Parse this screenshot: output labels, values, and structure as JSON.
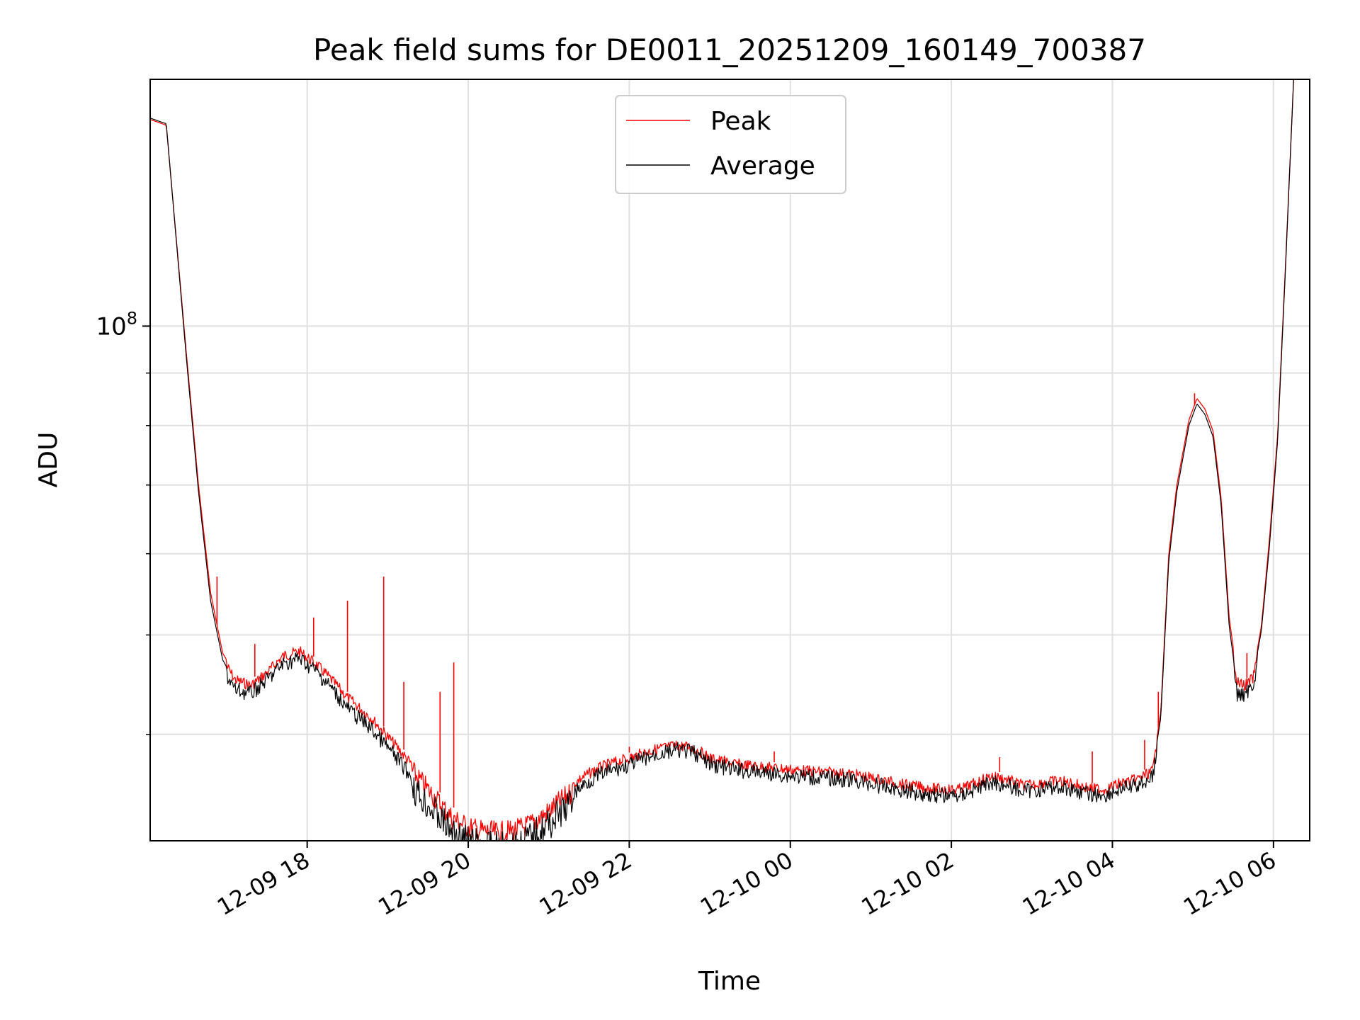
{
  "chart_data": {
    "type": "line",
    "title": "Peak field sums for DE0011_20251209_160149_700387",
    "xlabel": "Time",
    "ylabel": "ADU",
    "yscale": "log",
    "ylim": [
      31500000,
      174000000
    ],
    "xlim_hours": [
      16.05,
      30.45
    ],
    "grid": true,
    "legend_position": "top-center",
    "x_ticks": [
      {
        "hour": 18,
        "label": "12-09 18"
      },
      {
        "hour": 20,
        "label": "12-09 20"
      },
      {
        "hour": 22,
        "label": "12-09 22"
      },
      {
        "hour": 24,
        "label": "12-10 00"
      },
      {
        "hour": 26,
        "label": "12-10 02"
      },
      {
        "hour": 28,
        "label": "12-10 04"
      },
      {
        "hour": 30,
        "label": "12-10 06"
      }
    ],
    "y_major_tick": {
      "value": 100000000,
      "base": "10",
      "exp": "8"
    },
    "y_minor_ticks": [
      40000000,
      50000000,
      60000000,
      70000000,
      80000000,
      90000000,
      200000000
    ],
    "series": [
      {
        "name": "Peak",
        "color": "#ff0000",
        "points": [
          [
            16.05,
            159000000
          ],
          [
            16.25,
            157000000
          ],
          [
            16.5,
            94000000
          ],
          [
            16.65,
            70000000
          ],
          [
            16.8,
            55000000
          ],
          [
            16.95,
            48000000
          ],
          [
            17.1,
            45800000
          ],
          [
            17.3,
            45200000
          ],
          [
            17.5,
            46500000
          ],
          [
            17.7,
            48300000
          ],
          [
            17.9,
            48800000
          ],
          [
            18.1,
            47500000
          ],
          [
            18.3,
            45800000
          ],
          [
            18.5,
            44000000
          ],
          [
            18.8,
            42000000
          ],
          [
            19.1,
            39500000
          ],
          [
            19.4,
            37000000
          ],
          [
            19.6,
            35500000
          ],
          [
            19.8,
            34000000
          ],
          [
            20.0,
            33300000
          ],
          [
            20.2,
            33000000
          ],
          [
            20.4,
            32900000
          ],
          [
            20.6,
            33100000
          ],
          [
            20.8,
            33600000
          ],
          [
            21.0,
            34500000
          ],
          [
            21.2,
            35600000
          ],
          [
            21.4,
            36700000
          ],
          [
            21.6,
            37500000
          ],
          [
            21.8,
            38000000
          ],
          [
            22.0,
            38400000
          ],
          [
            22.2,
            38900000
          ],
          [
            22.4,
            39300000
          ],
          [
            22.6,
            39500000
          ],
          [
            22.8,
            39300000
          ],
          [
            23.0,
            38400000
          ],
          [
            23.3,
            37900000
          ],
          [
            23.6,
            37700000
          ],
          [
            23.9,
            37500000
          ],
          [
            24.2,
            37300000
          ],
          [
            24.5,
            37200000
          ],
          [
            24.8,
            37000000
          ],
          [
            25.1,
            36600000
          ],
          [
            25.4,
            36200000
          ],
          [
            25.7,
            35900000
          ],
          [
            25.9,
            35800000
          ],
          [
            26.1,
            35800000
          ],
          [
            26.3,
            36300000
          ],
          [
            26.5,
            36900000
          ],
          [
            26.7,
            36600000
          ],
          [
            26.9,
            36100000
          ],
          [
            27.1,
            36300000
          ],
          [
            27.3,
            36500000
          ],
          [
            27.5,
            36300000
          ],
          [
            27.7,
            35900000
          ],
          [
            27.9,
            35800000
          ],
          [
            28.1,
            36300000
          ],
          [
            28.3,
            36600000
          ],
          [
            28.5,
            37300000
          ],
          [
            28.6,
            42000000
          ],
          [
            28.7,
            60000000
          ],
          [
            28.8,
            70000000
          ],
          [
            28.95,
            81000000
          ],
          [
            29.05,
            85000000
          ],
          [
            29.15,
            83000000
          ],
          [
            29.25,
            79000000
          ],
          [
            29.35,
            68000000
          ],
          [
            29.45,
            52000000
          ],
          [
            29.55,
            45500000
          ],
          [
            29.65,
            45200000
          ],
          [
            29.75,
            46000000
          ],
          [
            29.85,
            51000000
          ],
          [
            29.95,
            62000000
          ],
          [
            30.05,
            78000000
          ],
          [
            30.15,
            115000000
          ],
          [
            30.25,
            174000000
          ]
        ]
      },
      {
        "name": "Average",
        "color": "#000000",
        "points": [
          [
            16.05,
            159500000
          ],
          [
            16.25,
            157500000
          ],
          [
            16.5,
            93000000
          ],
          [
            16.65,
            69000000
          ],
          [
            16.8,
            54000000
          ],
          [
            16.95,
            47300000
          ],
          [
            17.1,
            45000000
          ],
          [
            17.3,
            44600000
          ],
          [
            17.5,
            46000000
          ],
          [
            17.7,
            47700000
          ],
          [
            17.9,
            48300000
          ],
          [
            18.1,
            47000000
          ],
          [
            18.3,
            45200000
          ],
          [
            18.5,
            43200000
          ],
          [
            18.8,
            41200000
          ],
          [
            19.1,
            38700000
          ],
          [
            19.4,
            36100000
          ],
          [
            19.6,
            34700000
          ],
          [
            19.8,
            33300000
          ],
          [
            20.0,
            32600000
          ],
          [
            20.2,
            32300000
          ],
          [
            20.4,
            32200000
          ],
          [
            20.6,
            32400000
          ],
          [
            20.8,
            33000000
          ],
          [
            21.0,
            33900000
          ],
          [
            21.2,
            35100000
          ],
          [
            21.4,
            36200000
          ],
          [
            21.6,
            37100000
          ],
          [
            21.8,
            37600000
          ],
          [
            22.0,
            38000000
          ],
          [
            22.2,
            38600000
          ],
          [
            22.4,
            39000000
          ],
          [
            22.6,
            39300000
          ],
          [
            22.8,
            39100000
          ],
          [
            23.0,
            38100000
          ],
          [
            23.3,
            37600000
          ],
          [
            23.6,
            37400000
          ],
          [
            23.9,
            37200000
          ],
          [
            24.2,
            37000000
          ],
          [
            24.5,
            36900000
          ],
          [
            24.8,
            36700000
          ],
          [
            25.1,
            36300000
          ],
          [
            25.4,
            35900000
          ],
          [
            25.7,
            35600000
          ],
          [
            25.9,
            35500000
          ],
          [
            26.1,
            35500000
          ],
          [
            26.3,
            36000000
          ],
          [
            26.5,
            36600000
          ],
          [
            26.7,
            36300000
          ],
          [
            26.9,
            35800000
          ],
          [
            27.1,
            36000000
          ],
          [
            27.3,
            36200000
          ],
          [
            27.5,
            36000000
          ],
          [
            27.7,
            35600000
          ],
          [
            27.9,
            35500000
          ],
          [
            28.1,
            36000000
          ],
          [
            28.3,
            36300000
          ],
          [
            28.5,
            37000000
          ],
          [
            28.6,
            41500000
          ],
          [
            28.7,
            59000000
          ],
          [
            28.8,
            69000000
          ],
          [
            28.95,
            80000000
          ],
          [
            29.05,
            84000000
          ],
          [
            29.15,
            82000000
          ],
          [
            29.25,
            78000000
          ],
          [
            29.35,
            67000000
          ],
          [
            29.45,
            51000000
          ],
          [
            29.55,
            44500000
          ],
          [
            29.65,
            44600000
          ],
          [
            29.75,
            45600000
          ],
          [
            29.85,
            50500000
          ],
          [
            29.95,
            61000000
          ],
          [
            30.05,
            77000000
          ],
          [
            30.15,
            114000000
          ],
          [
            30.25,
            174000000
          ]
        ]
      }
    ],
    "spikes": [
      {
        "hour": 16.88,
        "value": 57000000
      },
      {
        "hour": 17.35,
        "value": 49000000
      },
      {
        "hour": 18.08,
        "value": 52000000
      },
      {
        "hour": 18.5,
        "value": 54000000
      },
      {
        "hour": 18.95,
        "value": 57000000
      },
      {
        "hour": 19.2,
        "value": 45000000
      },
      {
        "hour": 19.65,
        "value": 44000000
      },
      {
        "hour": 19.82,
        "value": 47000000
      },
      {
        "hour": 22.0,
        "value": 38900000
      },
      {
        "hour": 23.8,
        "value": 38500000
      },
      {
        "hour": 26.6,
        "value": 38000000
      },
      {
        "hour": 27.75,
        "value": 38500000
      },
      {
        "hour": 28.4,
        "value": 39500000
      },
      {
        "hour": 28.57,
        "value": 44000000
      },
      {
        "hour": 29.02,
        "value": 86000000
      },
      {
        "hour": 29.67,
        "value": 48000000
      }
    ]
  }
}
